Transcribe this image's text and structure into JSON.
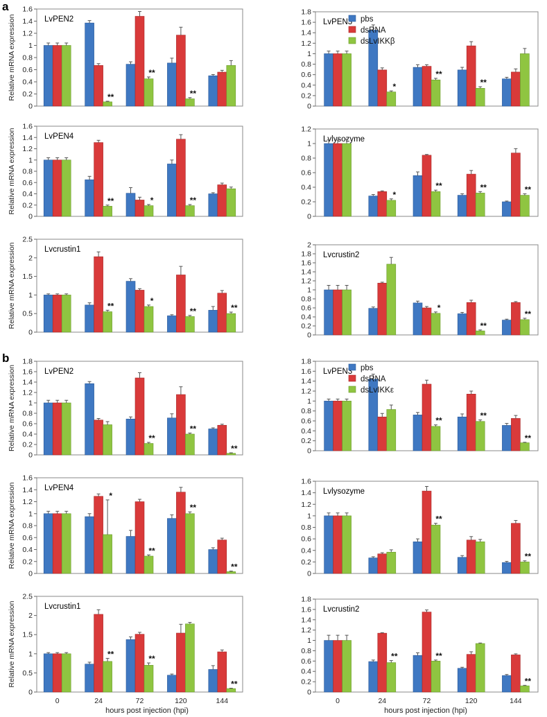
{
  "colors": {
    "pbs": "#3f78c2",
    "dsRNA": "#d93a3a",
    "knock": "#8fc541"
  },
  "sections": [
    {
      "label": "a",
      "legend": [
        "pbs",
        "dsRNA",
        "dsLvIKKβ"
      ]
    },
    {
      "label": "b",
      "legend": [
        "pbs",
        "dsRNA",
        "dsLvIKKε"
      ]
    }
  ],
  "xlabel": "hours post injection (hpi)",
  "ylabel": "Relative mRNA expression",
  "chart_data": [
    {
      "type": "bar",
      "section": "a",
      "title": "LvPEN2",
      "categories": [
        "0",
        "24",
        "72",
        "120",
        "144"
      ],
      "ylim": [
        0,
        1.6
      ],
      "yticks": [
        "0",
        "0.2",
        "0.4",
        "0.6",
        "0.8",
        "1",
        "1.2",
        "1.4",
        "1.6"
      ],
      "series": [
        {
          "name": "pbs",
          "values": [
            1,
            1.37,
            0.69,
            0.71,
            0.5
          ],
          "err": [
            0.04,
            0.04,
            0.04,
            0.08,
            0.02
          ]
        },
        {
          "name": "dsRNA",
          "values": [
            1,
            0.67,
            1.48,
            1.17,
            0.56
          ],
          "err": [
            0.04,
            0.03,
            0.08,
            0.13,
            0.03
          ]
        },
        {
          "name": "dsLvIKKβ",
          "values": [
            1,
            0.07,
            0.45,
            0.12,
            0.67
          ],
          "err": [
            0.04,
            0.01,
            0.03,
            0.02,
            0.08
          ]
        }
      ],
      "significance": [
        "",
        "**",
        "**",
        "**",
        ""
      ]
    },
    {
      "type": "bar",
      "section": "a",
      "title": "LvPEN3",
      "categories": [
        "0",
        "24",
        "72",
        "120",
        "144"
      ],
      "ylim": [
        0,
        1.8
      ],
      "yticks": [
        "0",
        "0.2",
        "0.4",
        "0.6",
        "0.8",
        "1",
        "1.2",
        "1.4",
        "1.6",
        "1.8"
      ],
      "series": [
        {
          "name": "pbs",
          "values": [
            1,
            1.45,
            0.74,
            0.69,
            0.52
          ],
          "err": [
            0.05,
            0.1,
            0.05,
            0.05,
            0.03
          ]
        },
        {
          "name": "dsRNA",
          "values": [
            1,
            0.69,
            0.76,
            1.15,
            0.65
          ],
          "err": [
            0.05,
            0.04,
            0.03,
            0.08,
            0.06
          ]
        },
        {
          "name": "dsLvIKKβ",
          "values": [
            1,
            0.27,
            0.5,
            0.34,
            1.0
          ],
          "err": [
            0.05,
            0.02,
            0.03,
            0.03,
            0.1
          ]
        }
      ],
      "significance": [
        "",
        "*",
        "**",
        "**",
        ""
      ]
    },
    {
      "type": "bar",
      "section": "a",
      "title": "LvPEN4",
      "categories": [
        "0",
        "24",
        "72",
        "120",
        "144"
      ],
      "ylim": [
        0,
        1.6
      ],
      "yticks": [
        "0",
        "0.2",
        "0.4",
        "0.6",
        "0.8",
        "1",
        "1.2",
        "1.4",
        "1.6"
      ],
      "series": [
        {
          "name": "pbs",
          "values": [
            1,
            0.65,
            0.41,
            0.93,
            0.4
          ],
          "err": [
            0.04,
            0.06,
            0.1,
            0.07,
            0.02
          ]
        },
        {
          "name": "dsRNA",
          "values": [
            1,
            1.31,
            0.29,
            1.37,
            0.56
          ],
          "err": [
            0.04,
            0.04,
            0.05,
            0.08,
            0.03
          ]
        },
        {
          "name": "dsLvIKKβ",
          "values": [
            1,
            0.18,
            0.19,
            0.19,
            0.49
          ],
          "err": [
            0.04,
            0.02,
            0.02,
            0.02,
            0.03
          ]
        }
      ],
      "significance": [
        "",
        "**",
        "*",
        "**",
        ""
      ]
    },
    {
      "type": "bar",
      "section": "a",
      "title": "Lvlysozyme",
      "categories": [
        "0",
        "24",
        "72",
        "120",
        "144"
      ],
      "ylim": [
        0,
        1.2
      ],
      "yticks": [
        "0",
        "0.2",
        "0.4",
        "0.6",
        "0.8",
        "1",
        "1.2"
      ],
      "series": [
        {
          "name": "pbs",
          "values": [
            1,
            0.28,
            0.56,
            0.29,
            0.2
          ],
          "err": [
            0.05,
            0.02,
            0.05,
            0.02,
            0.01
          ]
        },
        {
          "name": "dsRNA",
          "values": [
            1,
            0.34,
            0.84,
            0.58,
            0.87
          ],
          "err": [
            0.05,
            0.01,
            0.01,
            0.05,
            0.06
          ]
        },
        {
          "name": "dsLvIKKβ",
          "values": [
            1,
            0.22,
            0.34,
            0.32,
            0.29
          ],
          "err": [
            0.06,
            0.02,
            0.02,
            0.02,
            0.02
          ]
        }
      ],
      "significance": [
        "",
        "*",
        "**",
        "**",
        "**"
      ]
    },
    {
      "type": "bar",
      "section": "a",
      "title": "Lvcrustin1",
      "categories": [
        "0",
        "24",
        "72",
        "120",
        "144"
      ],
      "ylim": [
        0,
        2.5
      ],
      "yticks": [
        "0",
        "0.5",
        "1",
        "1.5",
        "2",
        "2.5"
      ],
      "series": [
        {
          "name": "pbs",
          "values": [
            1,
            0.73,
            1.37,
            0.44,
            0.59
          ],
          "err": [
            0.03,
            0.06,
            0.07,
            0.03,
            0.1
          ]
        },
        {
          "name": "dsRNA",
          "values": [
            1,
            2.03,
            1.13,
            1.54,
            1.05
          ],
          "err": [
            0.03,
            0.13,
            0.04,
            0.23,
            0.07
          ]
        },
        {
          "name": "dsLvIKKβ",
          "values": [
            1,
            0.55,
            0.69,
            0.42,
            0.5
          ],
          "err": [
            0.03,
            0.04,
            0.04,
            0.03,
            0.04
          ]
        }
      ],
      "significance": [
        "",
        "**",
        "*",
        "**",
        "**"
      ]
    },
    {
      "type": "bar",
      "section": "a",
      "title": "Lvcrustin2",
      "categories": [
        "0",
        "24",
        "72",
        "120",
        "144"
      ],
      "ylim": [
        0,
        2
      ],
      "yticks": [
        "0",
        "0.2",
        "0.4",
        "0.6",
        "0.8",
        "1",
        "1.2",
        "1.4",
        "1.6",
        "1.8",
        "2"
      ],
      "series": [
        {
          "name": "pbs",
          "values": [
            1,
            0.59,
            0.71,
            0.47,
            0.33
          ],
          "err": [
            0.1,
            0.03,
            0.04,
            0.03,
            0.02
          ]
        },
        {
          "name": "dsRNA",
          "values": [
            1,
            1.15,
            0.6,
            0.72,
            0.72
          ],
          "err": [
            0.1,
            0.02,
            0.03,
            0.05,
            0.02
          ]
        },
        {
          "name": "dsLvIKKβ",
          "values": [
            1,
            1.57,
            0.48,
            0.09,
            0.34
          ],
          "err": [
            0.1,
            0.15,
            0.03,
            0.02,
            0.03
          ]
        }
      ],
      "significance": [
        "",
        "",
        "*",
        "**",
        "**"
      ]
    },
    {
      "type": "bar",
      "section": "b",
      "title": "LvPEN2",
      "categories": [
        "0",
        "24",
        "72",
        "120",
        "144"
      ],
      "ylim": [
        0,
        1.8
      ],
      "yticks": [
        "0",
        "0.2",
        "0.4",
        "0.6",
        "0.8",
        "1",
        "1.2",
        "1.4",
        "1.6",
        "1.8"
      ],
      "series": [
        {
          "name": "pbs",
          "values": [
            1,
            1.37,
            0.69,
            0.71,
            0.5
          ],
          "err": [
            0.05,
            0.04,
            0.04,
            0.08,
            0.02
          ]
        },
        {
          "name": "dsRNA",
          "values": [
            1,
            0.67,
            1.48,
            1.16,
            0.57
          ],
          "err": [
            0.05,
            0.03,
            0.1,
            0.15,
            0.02
          ]
        },
        {
          "name": "dsLvIKKε",
          "values": [
            1,
            0.58,
            0.22,
            0.4,
            0.03
          ],
          "err": [
            0.05,
            0.06,
            0.02,
            0.02,
            0.01
          ]
        }
      ],
      "significance": [
        "",
        "",
        "**",
        "**",
        "**"
      ]
    },
    {
      "type": "bar",
      "section": "b",
      "title": "LvPEN3",
      "categories": [
        "0",
        "24",
        "72",
        "120",
        "144"
      ],
      "ylim": [
        0,
        1.8
      ],
      "yticks": [
        "0",
        "0.2",
        "0.4",
        "0.6",
        "0.8",
        "1",
        "1.2",
        "1.4",
        "1.6",
        "1.8"
      ],
      "series": [
        {
          "name": "pbs",
          "values": [
            1,
            1.44,
            0.72,
            0.68,
            0.51
          ],
          "err": [
            0.04,
            0.1,
            0.05,
            0.06,
            0.04
          ]
        },
        {
          "name": "dsRNA",
          "values": [
            1,
            0.68,
            1.34,
            1.14,
            0.65
          ],
          "err": [
            0.04,
            0.07,
            0.08,
            0.06,
            0.06
          ]
        },
        {
          "name": "dsLvIKKε",
          "values": [
            1,
            0.83,
            0.49,
            0.59,
            0.16
          ],
          "err": [
            0.04,
            0.09,
            0.03,
            0.03,
            0.01
          ]
        }
      ],
      "significance": [
        "",
        "",
        "**",
        "**",
        "**"
      ]
    },
    {
      "type": "bar",
      "section": "b",
      "title": "LvPEN4",
      "categories": [
        "0",
        "24",
        "72",
        "120",
        "144"
      ],
      "ylim": [
        0,
        1.6
      ],
      "yticks": [
        "0",
        "0.2",
        "0.4",
        "0.6",
        "0.8",
        "1",
        "1.2",
        "1.4",
        "1.6"
      ],
      "series": [
        {
          "name": "pbs",
          "values": [
            1,
            0.95,
            0.62,
            0.92,
            0.4
          ],
          "err": [
            0.04,
            0.05,
            0.1,
            0.06,
            0.03
          ]
        },
        {
          "name": "dsRNA",
          "values": [
            1,
            1.29,
            1.2,
            1.36,
            0.56
          ],
          "err": [
            0.04,
            0.04,
            0.04,
            0.08,
            0.03
          ]
        },
        {
          "name": "dsLvIKKε",
          "values": [
            1,
            0.65,
            0.29,
            1.0,
            0.03
          ],
          "err": [
            0.04,
            0.58,
            0.02,
            0.03,
            0.01
          ]
        }
      ],
      "significance": [
        "",
        "*",
        "**",
        "**",
        "**"
      ]
    },
    {
      "type": "bar",
      "section": "b",
      "title": "Lvlysozyme",
      "categories": [
        "0",
        "24",
        "72",
        "120",
        "144"
      ],
      "ylim": [
        0,
        1.6
      ],
      "yticks": [
        "0",
        "0.2",
        "0.4",
        "0.6",
        "0.8",
        "1",
        "1.2",
        "1.4",
        "1.6"
      ],
      "series": [
        {
          "name": "pbs",
          "values": [
            1,
            0.27,
            0.55,
            0.28,
            0.19
          ],
          "err": [
            0.05,
            0.02,
            0.05,
            0.03,
            0.02
          ]
        },
        {
          "name": "dsRNA",
          "values": [
            1,
            0.34,
            1.43,
            0.58,
            0.87
          ],
          "err": [
            0.05,
            0.02,
            0.08,
            0.06,
            0.05
          ]
        },
        {
          "name": "dsLvIKKε",
          "values": [
            1,
            0.37,
            0.84,
            0.55,
            0.2
          ],
          "err": [
            0.05,
            0.04,
            0.03,
            0.04,
            0.02
          ]
        }
      ],
      "significance": [
        "",
        "",
        "**",
        "",
        "**"
      ]
    },
    {
      "type": "bar",
      "section": "b",
      "title": "Lvcrustin1",
      "categories": [
        "0",
        "24",
        "72",
        "120",
        "144"
      ],
      "ylim": [
        0,
        2.5
      ],
      "yticks": [
        "0",
        "0.5",
        "1",
        "1.5",
        "2",
        "2.5"
      ],
      "series": [
        {
          "name": "pbs",
          "values": [
            1,
            0.73,
            1.37,
            0.44,
            0.59
          ],
          "err": [
            0.03,
            0.05,
            0.07,
            0.03,
            0.1
          ]
        },
        {
          "name": "dsRNA",
          "values": [
            1,
            2.03,
            1.51,
            1.54,
            1.05
          ],
          "err": [
            0.03,
            0.12,
            0.05,
            0.23,
            0.05
          ]
        },
        {
          "name": "dsLvIKKε",
          "values": [
            1,
            0.8,
            0.7,
            1.78,
            0.09
          ],
          "err": [
            0.03,
            0.08,
            0.06,
            0.04,
            0.01
          ]
        }
      ],
      "significance": [
        "",
        "**",
        "**",
        "",
        "**"
      ]
    },
    {
      "type": "bar",
      "section": "b",
      "title": "Lvcrustin2",
      "categories": [
        "0",
        "24",
        "72",
        "120",
        "144"
      ],
      "ylim": [
        0,
        1.8
      ],
      "yticks": [
        "0",
        "0.2",
        "0.4",
        "0.6",
        "0.8",
        "1",
        "1.2",
        "1.4",
        "1.6",
        "1.8"
      ],
      "series": [
        {
          "name": "pbs",
          "values": [
            1,
            0.59,
            0.71,
            0.46,
            0.32
          ],
          "err": [
            0.1,
            0.03,
            0.05,
            0.02,
            0.02
          ]
        },
        {
          "name": "dsRNA",
          "values": [
            1,
            1.14,
            1.55,
            0.73,
            0.72
          ],
          "err": [
            0.1,
            0.01,
            0.04,
            0.05,
            0.02
          ]
        },
        {
          "name": "dsLvIKKε",
          "values": [
            1,
            0.57,
            0.6,
            0.94,
            0.12
          ],
          "err": [
            0.1,
            0.04,
            0.02,
            0.01,
            0.01
          ]
        }
      ],
      "significance": [
        "",
        "**",
        "**",
        "",
        "**"
      ]
    }
  ]
}
